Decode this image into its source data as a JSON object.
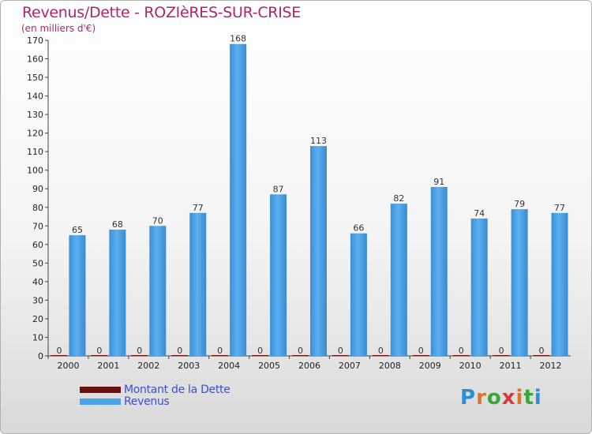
{
  "chart_data": {
    "type": "bar",
    "title": "Revenus/Dette - ROZIèRES-SUR-CRISE",
    "subtitle": "(en milliers d'€)",
    "xlabel": "",
    "ylabel": "",
    "ylim": [
      0,
      170
    ],
    "ytick_step": 10,
    "grid": false,
    "categories": [
      "2000",
      "2001",
      "2002",
      "2003",
      "2004",
      "2005",
      "2006",
      "2007",
      "2008",
      "2009",
      "2010",
      "2011",
      "2012"
    ],
    "series": [
      {
        "name": "Montant de la Dette",
        "color": "#6b0f0f",
        "values": [
          0,
          0,
          0,
          0,
          0,
          0,
          0,
          0,
          0,
          0,
          0,
          0,
          0
        ]
      },
      {
        "name": "Revenus",
        "color": "#4aa3e8",
        "values": [
          65,
          68,
          70,
          77,
          168,
          87,
          113,
          66,
          82,
          91,
          74,
          79,
          77
        ]
      }
    ],
    "legend_position": "bottom-left"
  },
  "brand": {
    "name": "Proxiti"
  }
}
